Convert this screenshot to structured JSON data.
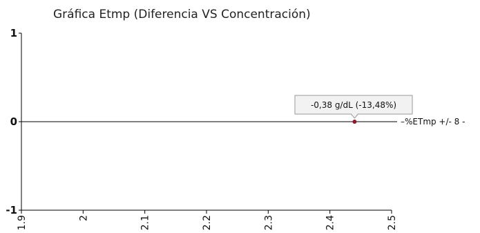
{
  "chart_data": {
    "type": "scatter",
    "title": "Gráfica Etmp (Diferencia VS Concentración)",
    "xlabel": "",
    "ylabel": "",
    "xlim": [
      1.9,
      2.5
    ],
    "ylim": [
      -1,
      1
    ],
    "xticks": [
      "1.9",
      "2",
      "2.1",
      "2.2",
      "2.3",
      "2.4",
      "2.5"
    ],
    "yticks": [
      "1",
      "0",
      "-1"
    ],
    "grid": false,
    "legend": {
      "position": "right",
      "text": "–%ETmp +/- 8 -"
    },
    "reference_line": {
      "y": 0
    },
    "points": [
      {
        "x": 2.44,
        "y": 0,
        "label": "-0,38 g/dL (-13,48%)"
      }
    ],
    "colors": {
      "point": "#8b1a2b",
      "axis": "#000000",
      "reference_line": "#000000"
    }
  }
}
